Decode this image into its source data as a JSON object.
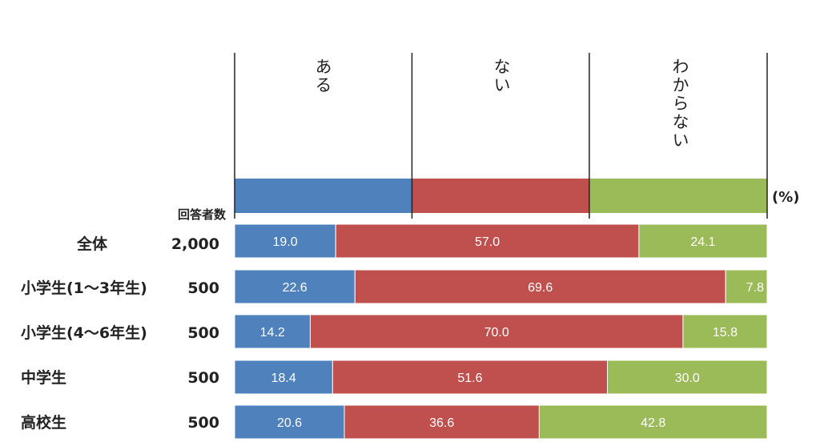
{
  "chart_data": {
    "type": "bar",
    "orientation": "horizontal",
    "stacked": true,
    "percent_stacked": true,
    "unit_label": "(%)",
    "respondents_header": "回答者数",
    "colors": [
      "#4f81bd",
      "#c0504d",
      "#9bbb59"
    ],
    "series": [
      {
        "name": "ある",
        "values": [
          19.0,
          22.6,
          14.2,
          18.4,
          20.6
        ],
        "labels": [
          "19.0",
          "22.6",
          "14.2",
          "18.4",
          "20.6"
        ]
      },
      {
        "name": "ない",
        "values": [
          57.0,
          69.6,
          70.0,
          51.6,
          36.6
        ],
        "labels": [
          "57.0",
          "69.6",
          "70.0",
          "51.6",
          "36.6"
        ]
      },
      {
        "name": "わからない",
        "values": [
          24.1,
          7.8,
          15.8,
          30.0,
          42.8
        ],
        "labels": [
          "24.1",
          "7.8",
          "15.8",
          "30.0",
          "42.8"
        ]
      }
    ],
    "categories": [
      {
        "label": "全体",
        "n": "2,000"
      },
      {
        "label": "小学生(1～3年生)",
        "n": "500"
      },
      {
        "label": "小学生(4～6年生)",
        "n": "500"
      },
      {
        "label": "中学生",
        "n": "500"
      },
      {
        "label": "高校生",
        "n": "500"
      }
    ],
    "header_bar": [
      33.3,
      33.3,
      33.4
    ]
  }
}
